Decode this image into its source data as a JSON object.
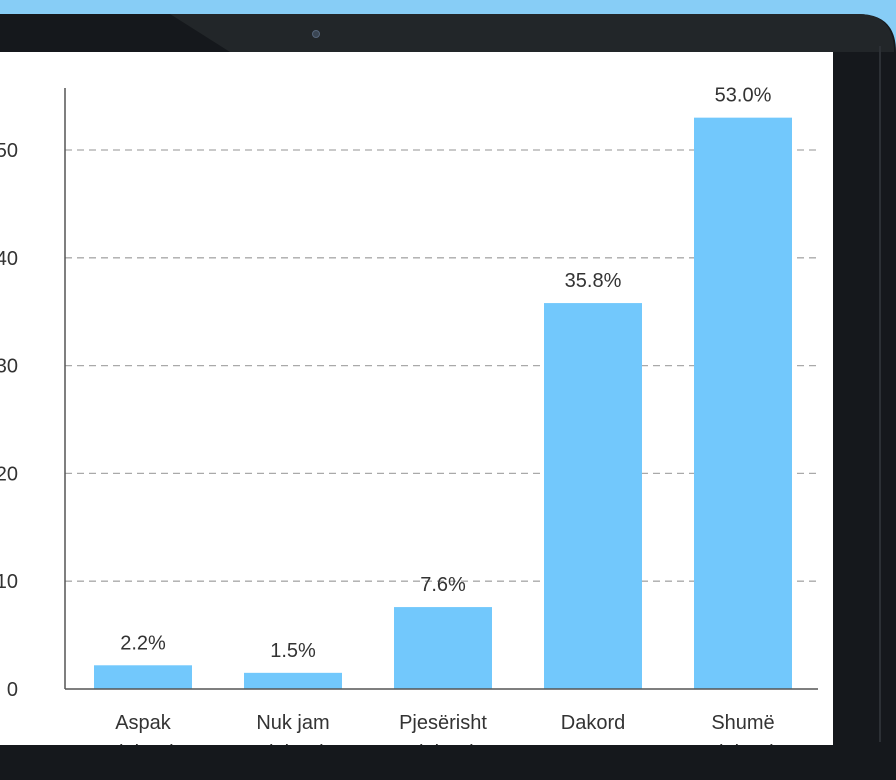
{
  "colors": {
    "background": "#87cdf6",
    "bezel": "#15181c",
    "screen": "#ffffff",
    "bar": "#72c8fc",
    "grid": "#a9a9a9",
    "axis": "#555555",
    "text": "#333333"
  },
  "icons": {
    "camera": "camera-icon"
  },
  "chart_data": {
    "type": "bar",
    "categories": [
      [
        "Aspak",
        "dakord"
      ],
      [
        "Nuk jam",
        "dakord"
      ],
      [
        "Pjesërisht",
        "dakord"
      ],
      [
        "Dakord"
      ],
      [
        "Shumë",
        "dakord"
      ]
    ],
    "values": [
      2.2,
      1.5,
      7.6,
      35.8,
      53.0
    ],
    "data_labels": [
      "2.2%",
      "1.5%",
      "7.6%",
      "35.8%",
      "53.0%"
    ],
    "yticks": [
      0,
      10,
      20,
      30,
      40,
      50
    ],
    "ylim": [
      0,
      55
    ],
    "grid": true,
    "grid_style": "dashed-horizontal",
    "title": "",
    "xlabel": "",
    "ylabel": ""
  }
}
